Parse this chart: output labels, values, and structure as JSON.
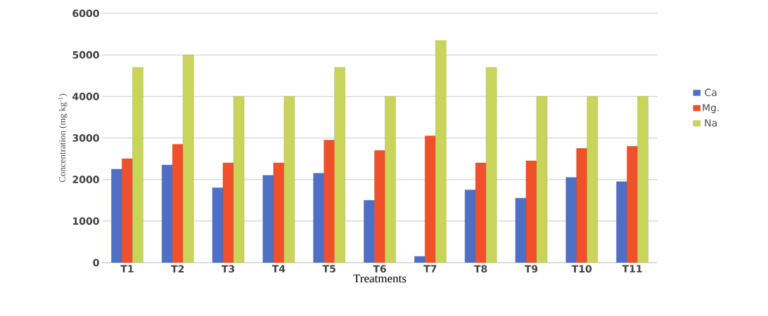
{
  "chart_data": {
    "type": "bar",
    "xlabel": "Treatments",
    "ylabel": "Concentration (mg kg$^{-1}$)",
    "categories": [
      "T1",
      "T2",
      "T3",
      "T4",
      "T5",
      "T6",
      "T7",
      "T8",
      "T9",
      "T10",
      "T11"
    ],
    "series": [
      {
        "name": "Ca",
        "color": "#4f6fc4",
        "values": [
          2250,
          2350,
          1800,
          2100,
          2150,
          1500,
          150,
          1750,
          1550,
          2050,
          1950
        ]
      },
      {
        "name": "Mg.",
        "color": "#f0502a",
        "values": [
          2500,
          2850,
          2400,
          2400,
          2950,
          2700,
          3050,
          2400,
          2450,
          2750,
          2800
        ]
      },
      {
        "name": "Na",
        "color": "#c8d45a",
        "values": [
          4700,
          5000,
          4000,
          4000,
          4700,
          4000,
          5350,
          4700,
          4000,
          4000,
          4000
        ]
      }
    ],
    "ylim": [
      0,
      6000
    ],
    "yticks": [
      0,
      1000,
      2000,
      3000,
      4000,
      5000,
      6000
    ],
    "grid": "y",
    "legend": "right"
  }
}
